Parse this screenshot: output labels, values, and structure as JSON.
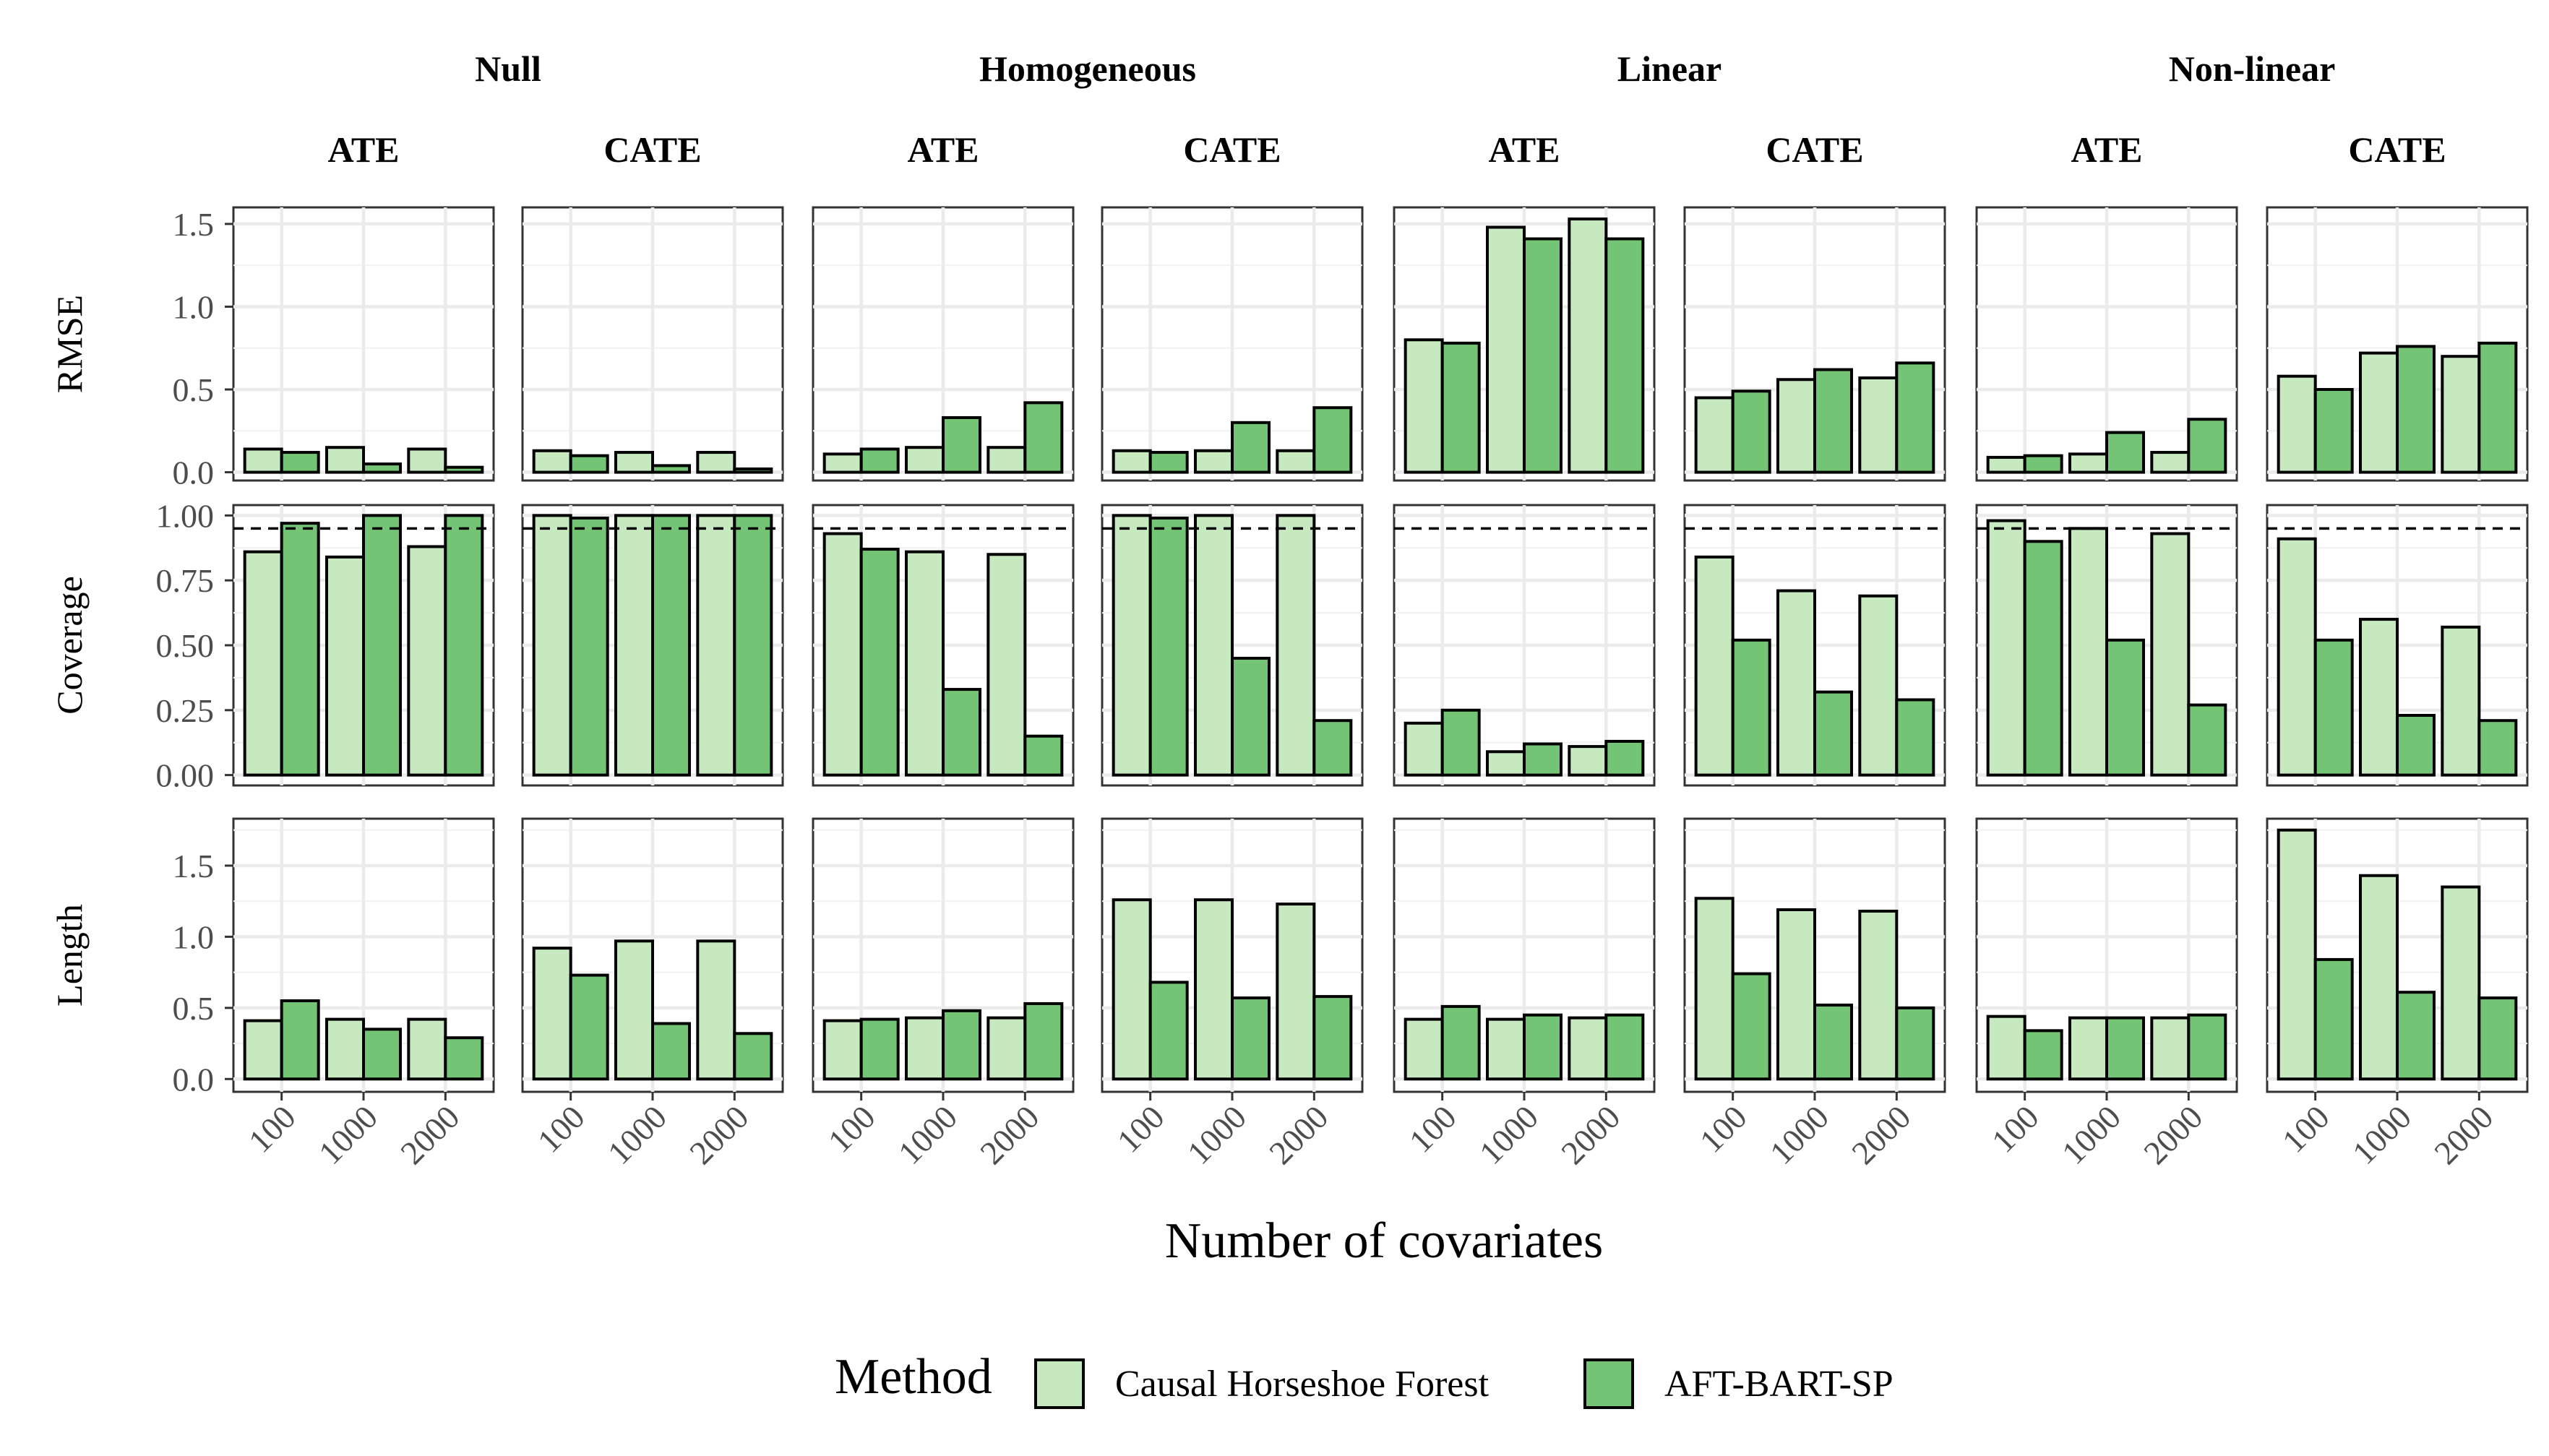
{
  "colors": {
    "causal_horseshoe_forest": "#c7e9c0",
    "aft_bart_sp": "#74c476"
  },
  "chart_data": {
    "type": "bar",
    "xlabel": "Number of covariates",
    "categories": [
      "100",
      "1000",
      "2000"
    ],
    "facet_columns": [
      {
        "setting": "Null",
        "estimand": "ATE"
      },
      {
        "setting": "Null",
        "estimand": "CATE"
      },
      {
        "setting": "Homogeneous",
        "estimand": "ATE"
      },
      {
        "setting": "Homogeneous",
        "estimand": "CATE"
      },
      {
        "setting": "Linear",
        "estimand": "ATE"
      },
      {
        "setting": "Linear",
        "estimand": "CATE"
      },
      {
        "setting": "Non-linear",
        "estimand": "ATE"
      },
      {
        "setting": "Non-linear",
        "estimand": "CATE"
      }
    ],
    "settings": [
      "Null",
      "Homogeneous",
      "Linear",
      "Non-linear"
    ],
    "legend": {
      "title": "Method",
      "position": "bottom",
      "entries": [
        "Causal Horseshoe Forest",
        "AFT-BART-SP"
      ]
    },
    "rows": [
      {
        "metric": "RMSE",
        "ylim": [
          -0.05,
          1.6
        ],
        "yticks": [
          0.0,
          0.5,
          1.0,
          1.5
        ],
        "ytick_labels": [
          "0.0",
          "0.5",
          "1.0",
          "1.5"
        ],
        "series": [
          {
            "name": "Causal Horseshoe Forest",
            "values": [
              [
                0.14,
                0.15,
                0.14
              ],
              [
                0.13,
                0.12,
                0.12
              ],
              [
                0.11,
                0.15,
                0.15
              ],
              [
                0.13,
                0.13,
                0.13
              ],
              [
                0.8,
                1.48,
                1.53
              ],
              [
                0.45,
                0.56,
                0.57
              ],
              [
                0.09,
                0.11,
                0.12
              ],
              [
                0.58,
                0.72,
                0.7
              ]
            ]
          },
          {
            "name": "AFT-BART-SP",
            "values": [
              [
                0.12,
                0.05,
                0.03
              ],
              [
                0.1,
                0.04,
                0.02
              ],
              [
                0.14,
                0.33,
                0.42
              ],
              [
                0.12,
                0.3,
                0.39
              ],
              [
                0.78,
                1.41,
                1.41
              ],
              [
                0.49,
                0.62,
                0.66
              ],
              [
                0.1,
                0.24,
                0.32
              ],
              [
                0.5,
                0.76,
                0.78
              ]
            ]
          }
        ]
      },
      {
        "metric": "Coverage",
        "ylim": [
          -0.04,
          1.04
        ],
        "yticks": [
          0.0,
          0.25,
          0.5,
          0.75,
          1.0
        ],
        "ytick_labels": [
          "0.00",
          "0.25",
          "0.50",
          "0.75",
          "1.00"
        ],
        "reference_line": 0.95,
        "series": [
          {
            "name": "Causal Horseshoe Forest",
            "values": [
              [
                0.86,
                0.84,
                0.88
              ],
              [
                1.0,
                1.0,
                1.0
              ],
              [
                0.93,
                0.86,
                0.85
              ],
              [
                1.0,
                1.0,
                1.0
              ],
              [
                0.2,
                0.09,
                0.11
              ],
              [
                0.84,
                0.71,
                0.69
              ],
              [
                0.98,
                0.95,
                0.93
              ],
              [
                0.91,
                0.6,
                0.57
              ]
            ]
          },
          {
            "name": "AFT-BART-SP",
            "values": [
              [
                0.97,
                1.0,
                1.0
              ],
              [
                0.99,
                1.0,
                1.0
              ],
              [
                0.87,
                0.33,
                0.15
              ],
              [
                0.99,
                0.45,
                0.21
              ],
              [
                0.25,
                0.12,
                0.13
              ],
              [
                0.52,
                0.32,
                0.29
              ],
              [
                0.9,
                0.52,
                0.27
              ],
              [
                0.52,
                0.23,
                0.21
              ]
            ]
          }
        ]
      },
      {
        "metric": "Length",
        "ylim": [
          -0.09,
          1.83
        ],
        "yticks": [
          0.0,
          0.5,
          1.0,
          1.5
        ],
        "ytick_labels": [
          "0.0",
          "0.5",
          "1.0",
          "1.5"
        ],
        "series": [
          {
            "name": "Causal Horseshoe Forest",
            "values": [
              [
                0.41,
                0.42,
                0.42
              ],
              [
                0.92,
                0.97,
                0.97
              ],
              [
                0.41,
                0.43,
                0.43
              ],
              [
                1.26,
                1.26,
                1.23
              ],
              [
                0.42,
                0.42,
                0.43
              ],
              [
                1.27,
                1.19,
                1.18
              ],
              [
                0.44,
                0.43,
                0.43
              ],
              [
                1.75,
                1.43,
                1.35
              ]
            ]
          },
          {
            "name": "AFT-BART-SP",
            "values": [
              [
                0.55,
                0.35,
                0.29
              ],
              [
                0.73,
                0.39,
                0.32
              ],
              [
                0.42,
                0.48,
                0.53
              ],
              [
                0.68,
                0.57,
                0.58
              ],
              [
                0.51,
                0.45,
                0.45
              ],
              [
                0.74,
                0.52,
                0.5
              ],
              [
                0.34,
                0.43,
                0.45
              ],
              [
                0.84,
                0.61,
                0.57
              ]
            ]
          }
        ]
      }
    ]
  }
}
